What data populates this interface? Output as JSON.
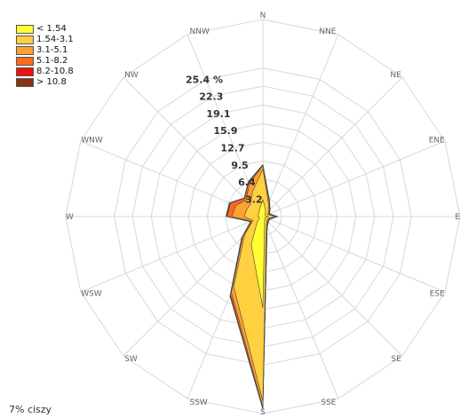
{
  "chart_data": {
    "type": "wind-rose",
    "directions": [
      "N",
      "NNE",
      "NE",
      "ENE",
      "E",
      "ESE",
      "SE",
      "SSE",
      "S",
      "SSW",
      "SW",
      "WSW",
      "W",
      "WNW",
      "NW",
      "NNW"
    ],
    "ring_labels": [
      "3.2",
      "6.4",
      "9.5",
      "12.7",
      "15.9",
      "19.1",
      "22.3",
      "25.4 %"
    ],
    "ring_values": [
      3.2,
      6.4,
      9.5,
      12.7,
      15.9,
      19.1,
      22.3,
      25.4
    ],
    "ylim": [
      0,
      33.7
    ],
    "speed_classes": [
      {
        "label": "< 1.54",
        "color": "#ffff33"
      },
      {
        "label": "1.54-3.1",
        "color": "#ffd040"
      },
      {
        "label": "3.1-5.1",
        "color": "#ffa033"
      },
      {
        "label": "5.1-8.2",
        "color": "#ff6a1a"
      },
      {
        "label": "8.2-10.8",
        "color": "#ee1111"
      },
      {
        "label": "> 10.8",
        "color": "#883311"
      }
    ],
    "cumulative_percent": [
      [
        2.9,
        1.2,
        0.6,
        0.4,
        1.0,
        0.4,
        0.4,
        0.8,
        15.6,
        5.2,
        1.4,
        0.6,
        0.8,
        0.8,
        1.0,
        1.4
      ],
      [
        8.1,
        2.5,
        1.4,
        0.9,
        2.1,
        0.9,
        1.0,
        1.6,
        31.6,
        13.0,
        4.4,
        1.8,
        3.2,
        3.0,
        3.0,
        4.6
      ],
      [
        8.7,
        2.8,
        1.6,
        1.1,
        2.4,
        1.1,
        1.2,
        1.8,
        32.6,
        14.1,
        4.9,
        2.1,
        5.3,
        5.0,
        4.0,
        6.1
      ],
      [
        8.8,
        2.9,
        1.7,
        1.2,
        2.5,
        1.2,
        1.3,
        1.9,
        32.8,
        14.5,
        5.0,
        2.2,
        6.1,
        6.0,
        4.4,
        6.4
      ],
      [
        8.85,
        2.95,
        1.7,
        1.2,
        2.5,
        1.2,
        1.3,
        1.9,
        32.9,
        14.6,
        5.1,
        2.25,
        6.2,
        6.1,
        4.45,
        6.45
      ],
      [
        8.9,
        3.0,
        1.75,
        1.25,
        2.55,
        1.25,
        1.35,
        1.95,
        33.0,
        14.7,
        5.15,
        2.3,
        6.3,
        6.2,
        4.5,
        6.5
      ]
    ],
    "calms_text": "7% ciszy"
  }
}
